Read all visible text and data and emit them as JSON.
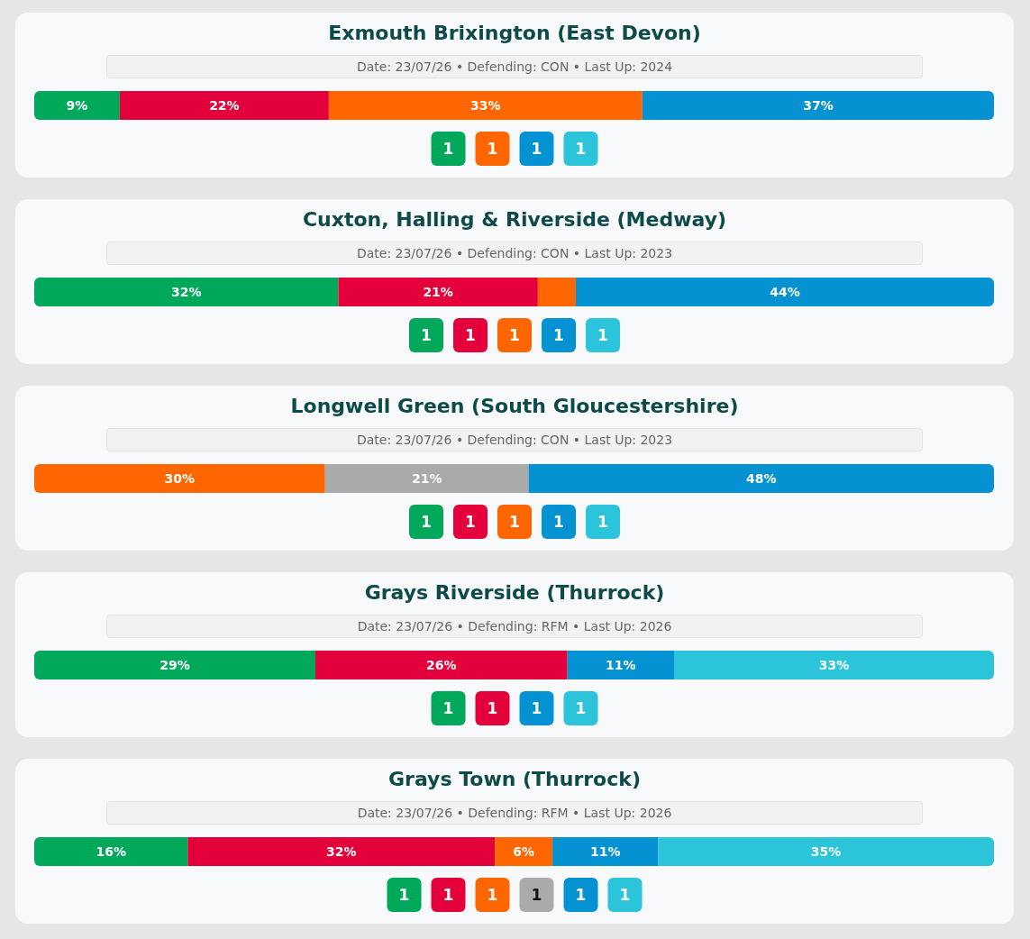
{
  "chart_data": [
    {
      "type": "bar",
      "orientation": "horizontal",
      "stacked": true,
      "title": "Exmouth Brixington (East Devon)",
      "subtitle": "Date: 23/07/26 • Defending: CON • Last Up: 2024",
      "categories": [
        null
      ],
      "series": [
        {
          "color": "#00a85a",
          "values": [
            9
          ],
          "value_labels": [
            "9%"
          ]
        },
        {
          "color": "#e4003b",
          "values": [
            22
          ],
          "value_labels": [
            "22%"
          ]
        },
        {
          "color": "#ff6600",
          "values": [
            33
          ],
          "value_labels": [
            "33%"
          ]
        },
        {
          "color": "#0492d2",
          "values": [
            37
          ],
          "value_labels": [
            "37%"
          ]
        }
      ]
    },
    {
      "type": "other",
      "categories": [
        null,
        null,
        null,
        null
      ],
      "values": [
        1,
        1,
        1,
        1
      ],
      "colors": [
        "#00a85a",
        "#ff6600",
        "#0492d2",
        "#2bc4da"
      ],
      "data_labels": true
    },
    {
      "type": "bar",
      "orientation": "horizontal",
      "stacked": true,
      "title": "Cuxton, Halling & Riverside (Medway)",
      "subtitle": "Date: 23/07/26 • Defending: CON • Last Up: 2023",
      "categories": [
        null
      ],
      "series": [
        {
          "color": "#00a85a",
          "values": [
            32
          ],
          "value_labels": [
            "32%"
          ]
        },
        {
          "color": "#e4003b",
          "values": [
            21
          ],
          "value_labels": [
            "21%"
          ]
        },
        {
          "color": "#ff6600",
          "values": [
            4
          ],
          "value_labels": [
            null
          ]
        },
        {
          "color": "#0492d2",
          "values": [
            44
          ],
          "value_labels": [
            "44%"
          ]
        }
      ]
    },
    {
      "type": "other",
      "categories": [
        null,
        null,
        null,
        null,
        null
      ],
      "values": [
        1,
        1,
        1,
        1,
        1
      ],
      "colors": [
        "#00a85a",
        "#e4003b",
        "#ff6600",
        "#0492d2",
        "#2bc4da"
      ],
      "data_labels": true
    },
    {
      "type": "bar",
      "orientation": "horizontal",
      "stacked": true,
      "title": "Longwell Green (South Gloucestershire)",
      "subtitle": "Date: 23/07/26 • Defending: CON • Last Up: 2023",
      "categories": [
        null
      ],
      "series": [
        {
          "color": "#ff6600",
          "values": [
            30
          ],
          "value_labels": [
            "30%"
          ]
        },
        {
          "color": "#aaaaaa",
          "values": [
            21
          ],
          "value_labels": [
            "21%"
          ]
        },
        {
          "color": "#0492d2",
          "values": [
            48
          ],
          "value_labels": [
            "48%"
          ]
        }
      ]
    },
    {
      "type": "other",
      "categories": [
        null,
        null,
        null,
        null,
        null
      ],
      "values": [
        1,
        1,
        1,
        1,
        1
      ],
      "colors": [
        "#00a85a",
        "#e4003b",
        "#ff6600",
        "#0492d2",
        "#2bc4da"
      ],
      "data_labels": true
    },
    {
      "type": "bar",
      "orientation": "horizontal",
      "stacked": true,
      "title": "Grays Riverside (Thurrock)",
      "subtitle": "Date: 23/07/26 • Defending: RFM • Last Up: 2026",
      "categories": [
        null
      ],
      "series": [
        {
          "color": "#00a85a",
          "values": [
            29
          ],
          "value_labels": [
            "29%"
          ]
        },
        {
          "color": "#e4003b",
          "values": [
            26
          ],
          "value_labels": [
            "26%"
          ]
        },
        {
          "color": "#0492d2",
          "values": [
            11
          ],
          "value_labels": [
            "11%"
          ]
        },
        {
          "color": "#2bc4da",
          "values": [
            33
          ],
          "value_labels": [
            "33%"
          ]
        }
      ]
    },
    {
      "type": "other",
      "categories": [
        null,
        null,
        null,
        null
      ],
      "values": [
        1,
        1,
        1,
        1
      ],
      "colors": [
        "#00a85a",
        "#e4003b",
        "#0492d2",
        "#2bc4da"
      ],
      "data_labels": true
    },
    {
      "type": "bar",
      "orientation": "horizontal",
      "stacked": true,
      "title": "Grays Town (Thurrock)",
      "subtitle": "Date: 23/07/26 • Defending: RFM • Last Up: 2026",
      "categories": [
        null
      ],
      "series": [
        {
          "color": "#00a85a",
          "values": [
            16
          ],
          "value_labels": [
            "16%"
          ]
        },
        {
          "color": "#e4003b",
          "values": [
            32
          ],
          "value_labels": [
            "32%"
          ]
        },
        {
          "color": "#ff6600",
          "values": [
            6
          ],
          "value_labels": [
            "6%"
          ]
        },
        {
          "color": "#0492d2",
          "values": [
            11
          ],
          "value_labels": [
            "11%"
          ]
        },
        {
          "color": "#2bc4da",
          "values": [
            35
          ],
          "value_labels": [
            "35%"
          ]
        }
      ]
    },
    {
      "type": "other",
      "categories": [
        null,
        null,
        null,
        null,
        null,
        null
      ],
      "values": [
        1,
        1,
        1,
        1,
        1,
        1
      ],
      "colors": [
        "#00a85a",
        "#e4003b",
        "#ff6600",
        "#aaaaaa",
        "#0492d2",
        "#2bc4da"
      ],
      "data_labels": true
    }
  ]
}
